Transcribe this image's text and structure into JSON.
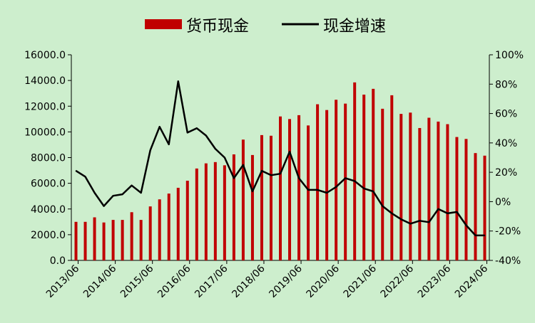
{
  "chart_data": {
    "type": "bar+line",
    "legend": {
      "placement": "top-center"
    },
    "series": [
      {
        "name": "货币现金",
        "type": "bar",
        "axis": "left",
        "color": "#c00000",
        "values": [
          3000,
          3000,
          3350,
          2950,
          3150,
          3150,
          3750,
          3150,
          4200,
          4750,
          5200,
          5650,
          6200,
          7150,
          7550,
          7650,
          7400,
          8250,
          9400,
          8200,
          9750,
          9700,
          11200,
          11000,
          11300,
          10500,
          12150,
          11700,
          12500,
          12200,
          13850,
          12900,
          13350,
          11800,
          12850,
          11400,
          11500,
          10300,
          11100,
          10800,
          10600,
          9600,
          9450,
          8350,
          8150
        ]
      },
      {
        "name": "现金增速",
        "type": "line",
        "axis": "right",
        "color": "#000000",
        "values": [
          21,
          17,
          6,
          -3,
          4,
          5,
          11,
          6,
          35,
          51,
          39,
          82,
          47,
          50,
          45,
          36,
          30,
          16,
          25,
          7,
          21,
          18,
          19,
          34,
          16,
          8,
          8,
          6,
          10,
          16,
          14,
          9,
          7,
          -3,
          -8,
          -12,
          -15,
          -13,
          -14,
          -5,
          -8,
          -7,
          -16,
          -23,
          -23
        ]
      }
    ],
    "axes": {
      "left": {
        "min": 0,
        "max": 16000,
        "ticks": [
          "0.0",
          "2000.0",
          "4000.0",
          "6000.0",
          "8000.0",
          "10000.0",
          "12000.0",
          "14000.0",
          "16000.0"
        ]
      },
      "right": {
        "min": -40,
        "max": 100,
        "ticks": [
          "-40%",
          "-20%",
          "0%",
          "20%",
          "40%",
          "60%",
          "80%",
          "100%"
        ]
      },
      "x": {
        "labels": [
          "2013/06",
          "2014/06",
          "2015/06",
          "2016/06",
          "2017/06",
          "2018/06",
          "2019/06",
          "2020/06",
          "2021/06",
          "2022/06",
          "2023/06",
          "2024/06"
        ]
      }
    },
    "grid": false
  }
}
